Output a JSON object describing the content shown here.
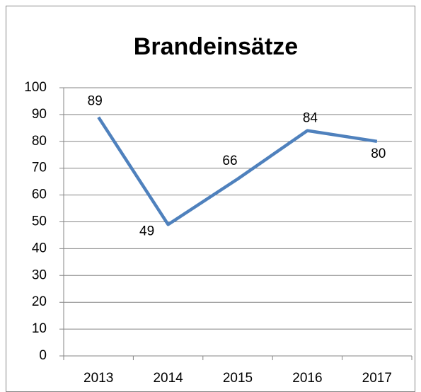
{
  "chart_data": {
    "type": "line",
    "title": "Brandeinsätze",
    "categories": [
      "2013",
      "2014",
      "2015",
      "2016",
      "2017"
    ],
    "series": [
      {
        "name": "Brandeinsätze",
        "color": "#4f81bd",
        "values": [
          89,
          49,
          66,
          84,
          80
        ]
      }
    ],
    "ylim": [
      0,
      100
    ],
    "yticks": [
      0,
      10,
      20,
      30,
      40,
      50,
      60,
      70,
      80,
      90,
      100
    ],
    "grid": true,
    "data_labels": true
  }
}
